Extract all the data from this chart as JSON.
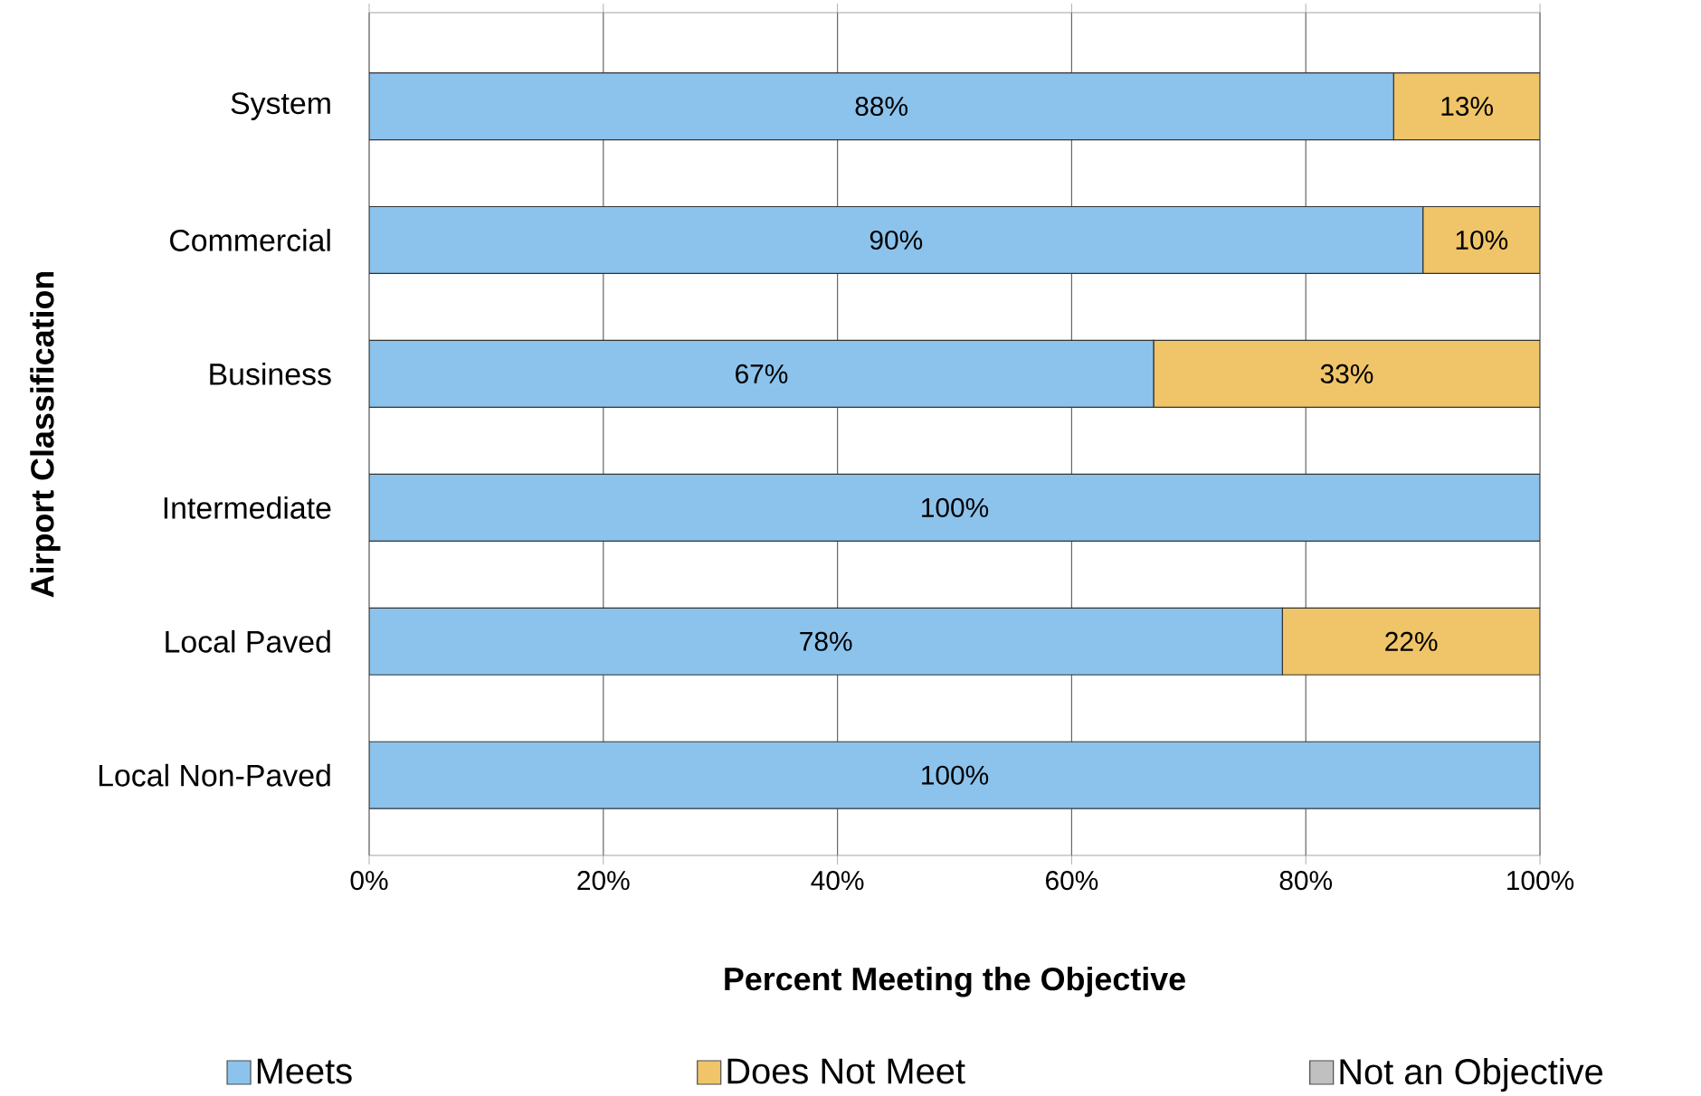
{
  "chart_data": {
    "type": "bar",
    "orientation": "horizontal",
    "stacked": true,
    "categories": [
      "System",
      "Commercial",
      "Business",
      "Intermediate",
      "Local Paved",
      "Local Non-Paved"
    ],
    "series": [
      {
        "name": "Meets",
        "color": "#8cc3ec",
        "values": [
          87.5,
          90,
          67,
          100,
          78,
          100
        ],
        "value_labels": [
          "88%",
          "90%",
          "67%",
          "100%",
          "78%",
          "100%"
        ]
      },
      {
        "name": "Does Not Meet",
        "color": "#f0c468",
        "values": [
          12.5,
          10,
          33,
          0,
          22,
          0
        ],
        "value_labels": [
          "13%",
          "10%",
          "33%",
          null,
          "22%",
          null
        ]
      },
      {
        "name": "Not an Objective",
        "color": "#c0c0c0",
        "values": [
          0,
          0,
          0,
          0,
          0,
          0
        ]
      }
    ],
    "xlabel": "Percent Meeting the Objective",
    "ylabel": "Airport Classification",
    "xlim": [
      0,
      100
    ],
    "xticks": [
      {
        "value": 0,
        "label": "0%"
      },
      {
        "value": 20,
        "label": "20%"
      },
      {
        "value": 40,
        "label": "40%"
      },
      {
        "value": 60,
        "label": "60%"
      },
      {
        "value": 80,
        "label": "80%"
      },
      {
        "value": 100,
        "label": "100%"
      }
    ],
    "grid": "x",
    "legend": "bottom"
  }
}
